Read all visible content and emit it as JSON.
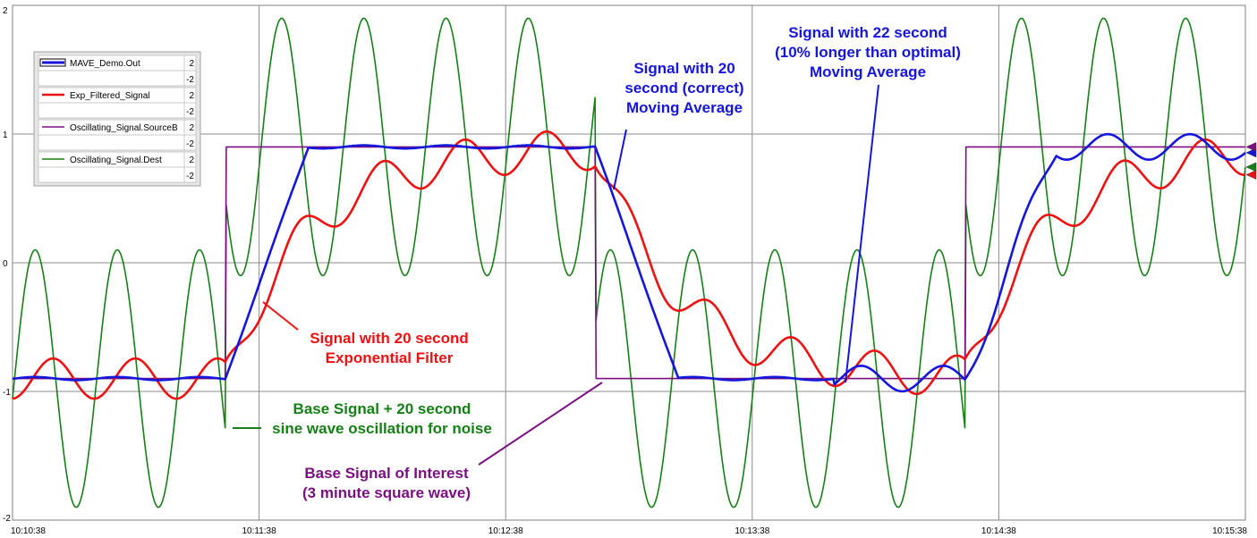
{
  "chart_data": {
    "type": "line",
    "title": "",
    "xlabel": "",
    "ylabel": "",
    "x_range_seconds_from_10:10:38": [
      0,
      300
    ],
    "ylim": [
      -2,
      2
    ],
    "grid": true,
    "x_ticks": [
      "10:10:38",
      "10:11:38",
      "10:12:38",
      "10:13:38",
      "10:14:38",
      "10:15:38"
    ],
    "y_ticks": [
      "2",
      "1",
      "0",
      "-1",
      "-2"
    ],
    "y_tick_values": [
      2,
      1,
      0,
      -1,
      -2
    ],
    "legend_position": "top-left",
    "series": [
      {
        "name": "MAVE_Demo.Out",
        "color": "#1515dc",
        "max": "2",
        "min": "-2"
      },
      {
        "name": "Exp_Filtered_Signal",
        "color": "#ee1111",
        "max": "2",
        "min": "-2"
      },
      {
        "name": "Oscillating_Signal.SourceB",
        "color": "#7a0f7f",
        "max": "2",
        "min": "-2"
      },
      {
        "name": "Oscillating_Signal.Dest",
        "color": "#168016",
        "max": "2",
        "min": "-2"
      }
    ],
    "annotations": [
      {
        "lines": [
          "Signal with 20",
          "second (correct)",
          "Moving Average"
        ],
        "color": "#1515dc"
      },
      {
        "lines": [
          "Signal with 22 second",
          "(10% longer than optimal)",
          "Moving Average"
        ],
        "color": "#1515dc"
      },
      {
        "lines": [
          "Signal with 20 second",
          "Exponential Filter"
        ],
        "color": "#ee1111"
      },
      {
        "lines": [
          "Base Signal + 20 second",
          "sine wave oscillation for noise"
        ],
        "color": "#168016"
      },
      {
        "lines": [
          "Base Signal of Interest",
          "(3 minute square wave)"
        ],
        "color": "#7a0f7f"
      }
    ]
  }
}
